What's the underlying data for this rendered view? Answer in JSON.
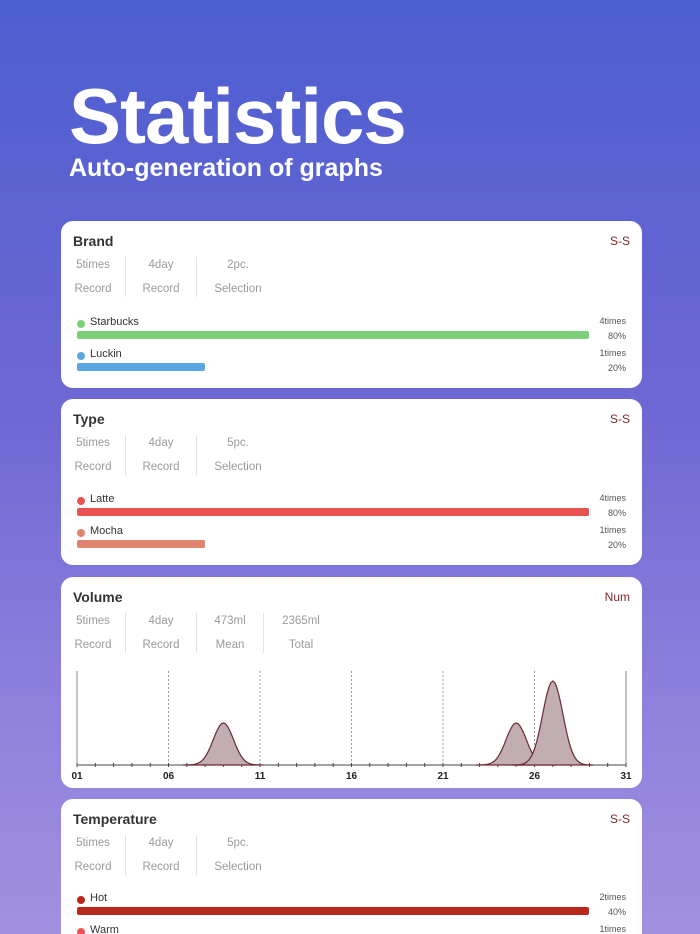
{
  "hero": {
    "title": "Statistics",
    "subtitle": "Auto-generation of graphs"
  },
  "cards": {
    "brand": {
      "title": "Brand",
      "mode": "S-S",
      "stats": [
        {
          "value": "5times",
          "label": "Record"
        },
        {
          "value": "4day",
          "label": "Record"
        },
        {
          "value": "2pc.",
          "label": "Selection"
        }
      ],
      "items": [
        {
          "name": "Starbucks",
          "times": "4times",
          "percent": "80%",
          "fraction": 1.0,
          "color": "#7dd07a"
        },
        {
          "name": "Luckin",
          "times": "1times",
          "percent": "20%",
          "fraction": 0.25,
          "color": "#5aa7e3"
        }
      ]
    },
    "type": {
      "title": "Type",
      "mode": "S-S",
      "stats": [
        {
          "value": "5times",
          "label": "Record"
        },
        {
          "value": "4day",
          "label": "Record"
        },
        {
          "value": "5pc.",
          "label": "Selection"
        }
      ],
      "items": [
        {
          "name": "Latte",
          "times": "4times",
          "percent": "80%",
          "fraction": 1.0,
          "color": "#e85454"
        },
        {
          "name": "Mocha",
          "times": "1times",
          "percent": "20%",
          "fraction": 0.25,
          "color": "#e2836f"
        }
      ]
    },
    "volume": {
      "title": "Volume",
      "mode": "Num",
      "stats": [
        {
          "value": "5times",
          "label": "Record"
        },
        {
          "value": "4day",
          "label": "Record"
        },
        {
          "value": "473ml",
          "label": "Mean"
        },
        {
          "value": "2365ml",
          "label": "Total"
        }
      ]
    },
    "temperature": {
      "title": "Temperature",
      "mode": "S-S",
      "stats": [
        {
          "value": "5times",
          "label": "Record"
        },
        {
          "value": "4day",
          "label": "Record"
        },
        {
          "value": "5pc.",
          "label": "Selection"
        }
      ],
      "items": [
        {
          "name": "Hot",
          "times": "2times",
          "percent": "40%",
          "fraction": 1.0,
          "color": "#b8281c"
        },
        {
          "name": "Warm",
          "times": "1times",
          "percent": "",
          "fraction": 0.5,
          "color": "#e85454"
        }
      ]
    }
  },
  "chart_data": {
    "type": "area",
    "x_ticks": [
      "01",
      "06",
      "11",
      "16",
      "21",
      "26",
      "31"
    ],
    "xlim": [
      1,
      31
    ],
    "peaks": [
      {
        "day": 9,
        "height": 0.5
      },
      {
        "day": 25,
        "height": 0.5
      },
      {
        "day": 27,
        "height": 1.0
      }
    ],
    "fill_color": "#c2aeb2",
    "line_color": "#6b2a35"
  }
}
